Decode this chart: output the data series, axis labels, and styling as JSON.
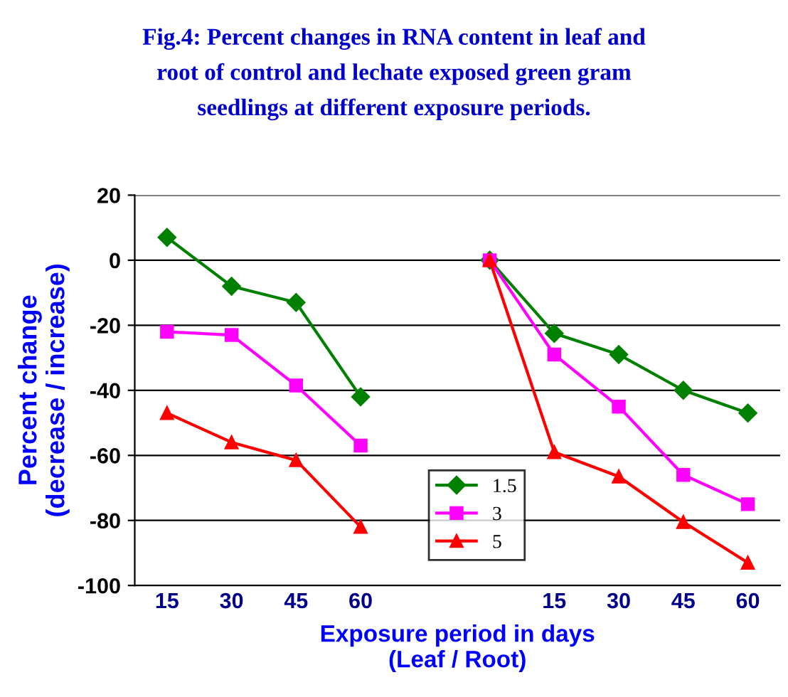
{
  "chart_data": {
    "type": "line",
    "title": "Fig.4: Percent changes in RNA content in leaf and\nroot of control and lechate exposed green gram\nseedlings at different exposure periods.",
    "xlabel": "Exposure period in days\n(Leaf / Root)",
    "ylabel": "Percent change\n(decrease / increase)",
    "categories": [
      "15",
      "30",
      "45",
      "60",
      null,
      null,
      "15",
      "30",
      "45",
      "60"
    ],
    "series": [
      {
        "name": "1.5",
        "color": "#008000",
        "marker": "diamond",
        "values": [
          7,
          -8,
          -13,
          -42,
          null,
          0,
          -22.5,
          -29,
          -40,
          -47
        ]
      },
      {
        "name": "3",
        "color": "#ff00ff",
        "marker": "square",
        "values": [
          -22,
          -23,
          -38.5,
          -57,
          null,
          0,
          -29,
          -45,
          -66,
          -75
        ]
      },
      {
        "name": "5",
        "color": "#ff0000",
        "marker": "triangle",
        "values": [
          -47,
          -56,
          -61.5,
          -82,
          null,
          0,
          -59,
          -66.5,
          -80.5,
          -93
        ]
      }
    ],
    "ylim": [
      -100,
      20
    ],
    "yticks": [
      -100,
      -80,
      -60,
      -40,
      -20,
      0,
      20
    ],
    "grid": "y",
    "legend": "bottom",
    "line_style": "solid"
  }
}
